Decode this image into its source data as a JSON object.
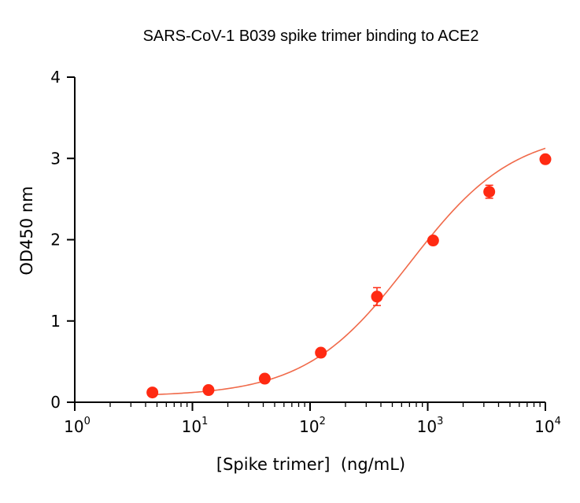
{
  "chart_data": {
    "type": "scatter",
    "title": "SARS-CoV-1 B039 spike trimer binding to ACE2",
    "xlabel": "[Spike trimer]  (ng/mL)",
    "ylabel": "OD450 nm",
    "x_scale": "log",
    "xlim": [
      1,
      10000
    ],
    "ylim": [
      0,
      4
    ],
    "x_ticks": [
      {
        "base": "10",
        "exp": "0"
      },
      {
        "base": "10",
        "exp": "1"
      },
      {
        "base": "10",
        "exp": "2"
      },
      {
        "base": "10",
        "exp": "3"
      },
      {
        "base": "10",
        "exp": "4"
      }
    ],
    "y_ticks": [
      "0",
      "1",
      "2",
      "3",
      "4"
    ],
    "grid": false,
    "series": [
      {
        "color": "#ff2a12",
        "x": [
          4.57,
          13.7,
          41.2,
          123.5,
          370.4,
          1111,
          3333,
          10000
        ],
        "y": [
          0.12,
          0.15,
          0.29,
          0.61,
          1.3,
          1.99,
          2.59,
          2.99
        ],
        "err": [
          0.02,
          0.02,
          0.02,
          0.03,
          0.11,
          0.04,
          0.08,
          0.02
        ]
      }
    ],
    "fit": {
      "color": "#f06a4a",
      "bottom": 0.07,
      "top": 3.35,
      "ec50": 700,
      "hill": 0.98
    }
  }
}
